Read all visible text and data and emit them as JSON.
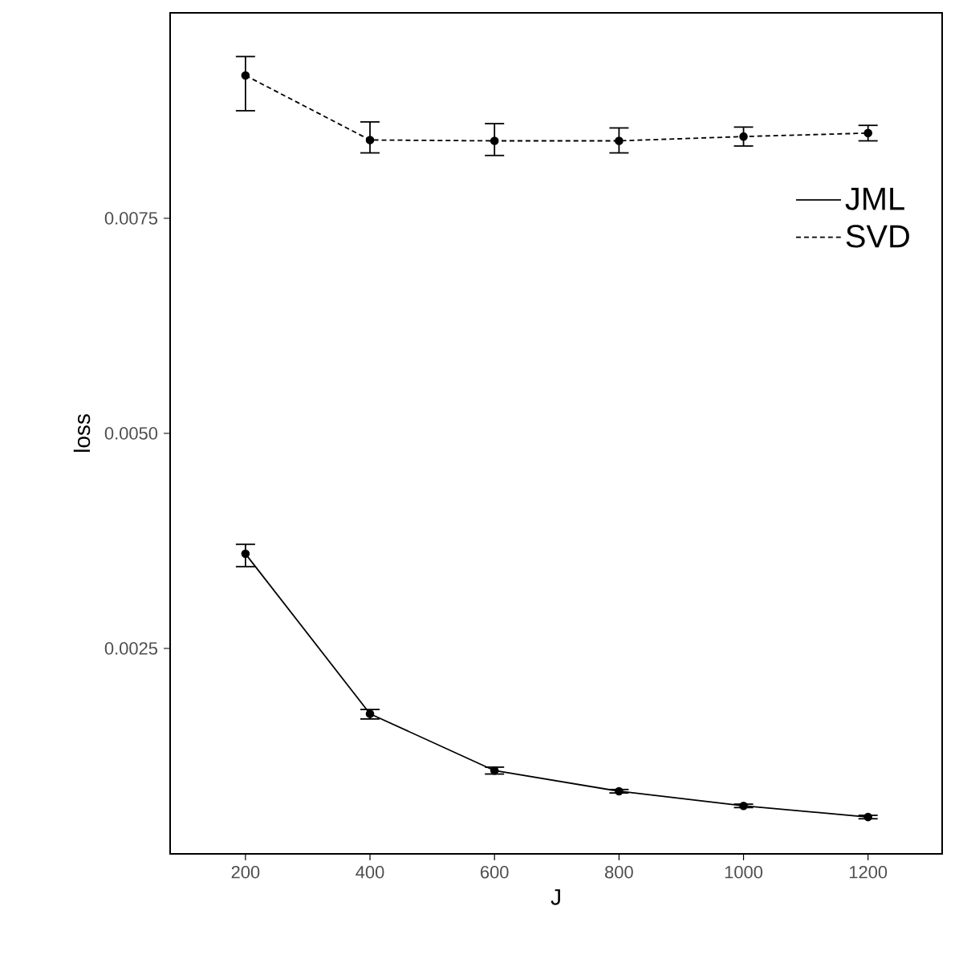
{
  "chart_data": {
    "type": "line",
    "xlabel": "J",
    "ylabel": "loss",
    "x": [
      200,
      400,
      600,
      800,
      1000,
      1200
    ],
    "series": [
      {
        "name": "JML",
        "color": "#000000",
        "line_style": "solid",
        "values": [
          0.0036,
          0.00174,
          0.00108,
          0.00084,
          0.00067,
          0.00054
        ],
        "errors": [
          [
            0.00345,
            0.00371
          ],
          [
            0.00168,
            0.00179
          ],
          [
            0.00104,
            0.00112
          ],
          2e-05,
          2e-05,
          2e-05
        ]
      },
      {
        "name": "SVD",
        "color": "#000000",
        "line_style": "dashed",
        "values": [
          0.00916,
          0.00841,
          0.0084,
          0.0084,
          0.00845,
          0.00849
        ],
        "errors": [
          [
            0.00875,
            0.00938
          ],
          [
            0.00826,
            0.00862
          ],
          [
            0.00823,
            0.0086
          ],
          [
            0.00826,
            0.00855
          ],
          [
            0.00834,
            0.00856
          ],
          [
            0.0084,
            0.00858
          ]
        ]
      }
    ],
    "marker": "circle",
    "xlim": [
      79,
      1319
    ],
    "ylim": [
      0.000112,
      0.009888
    ],
    "xticks": [
      200,
      400,
      600,
      800,
      1000,
      1200
    ],
    "yticks": [
      {
        "value": 0.0025,
        "label": "0.0025"
      },
      {
        "value": 0.005,
        "label": "0.0050"
      },
      {
        "value": 0.0075,
        "label": "0.0075"
      }
    ],
    "grid": false,
    "legend": "top right"
  }
}
